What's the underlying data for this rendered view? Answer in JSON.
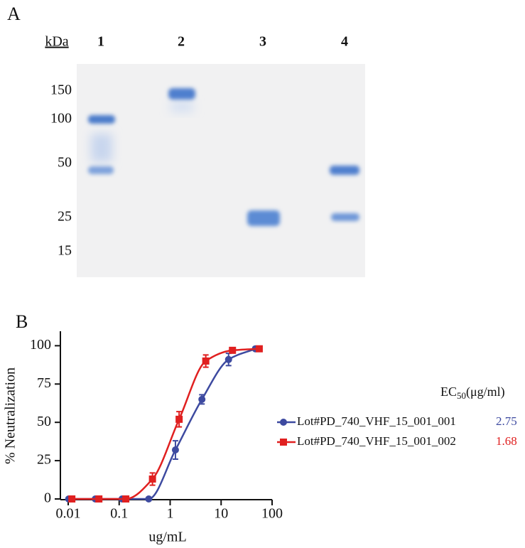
{
  "panel_a": {
    "label": "A",
    "unit": "kDa",
    "lanes": [
      "1",
      "2",
      "3",
      "4"
    ],
    "markers": [
      "150",
      "100",
      "50",
      "25",
      "15"
    ]
  },
  "chart_data": {
    "type": "line",
    "label": "B",
    "y_label": "% Neutralization",
    "x_label": "ug/mL",
    "log_x": true,
    "xlim": [
      0.01,
      100
    ],
    "xticks": [
      0.01,
      0.1,
      1,
      10,
      100
    ],
    "ylim": [
      0,
      109
    ],
    "yticks": [
      0,
      25,
      50,
      75,
      100
    ],
    "legend_header": {
      "main": "EC",
      "sub": "50",
      "unit": "(μg/ml)"
    },
    "series": [
      {
        "name": "Lot#PD_740_VHF_15_001_001",
        "color": "#3d4aa0",
        "marker": "circle",
        "ec50": 2.75,
        "x": [
          0.0102,
          0.034,
          0.114,
          0.38,
          1.27,
          4.2,
          14,
          47
        ],
        "values": [
          0,
          0,
          0,
          0,
          32,
          65,
          91,
          98
        ],
        "errors": [
          null,
          null,
          null,
          null,
          6,
          3,
          4,
          null
        ]
      },
      {
        "name": "Lot#PD_740_VHF_15_001_002",
        "color": "#e02020",
        "marker": "square",
        "ec50": 1.68,
        "x": [
          0.0118,
          0.04,
          0.135,
          0.45,
          1.5,
          5,
          16.7,
          56
        ],
        "values": [
          0,
          0,
          0,
          13,
          52,
          90,
          97,
          98
        ],
        "errors": [
          null,
          null,
          null,
          4,
          5,
          4,
          1,
          null
        ]
      }
    ]
  }
}
